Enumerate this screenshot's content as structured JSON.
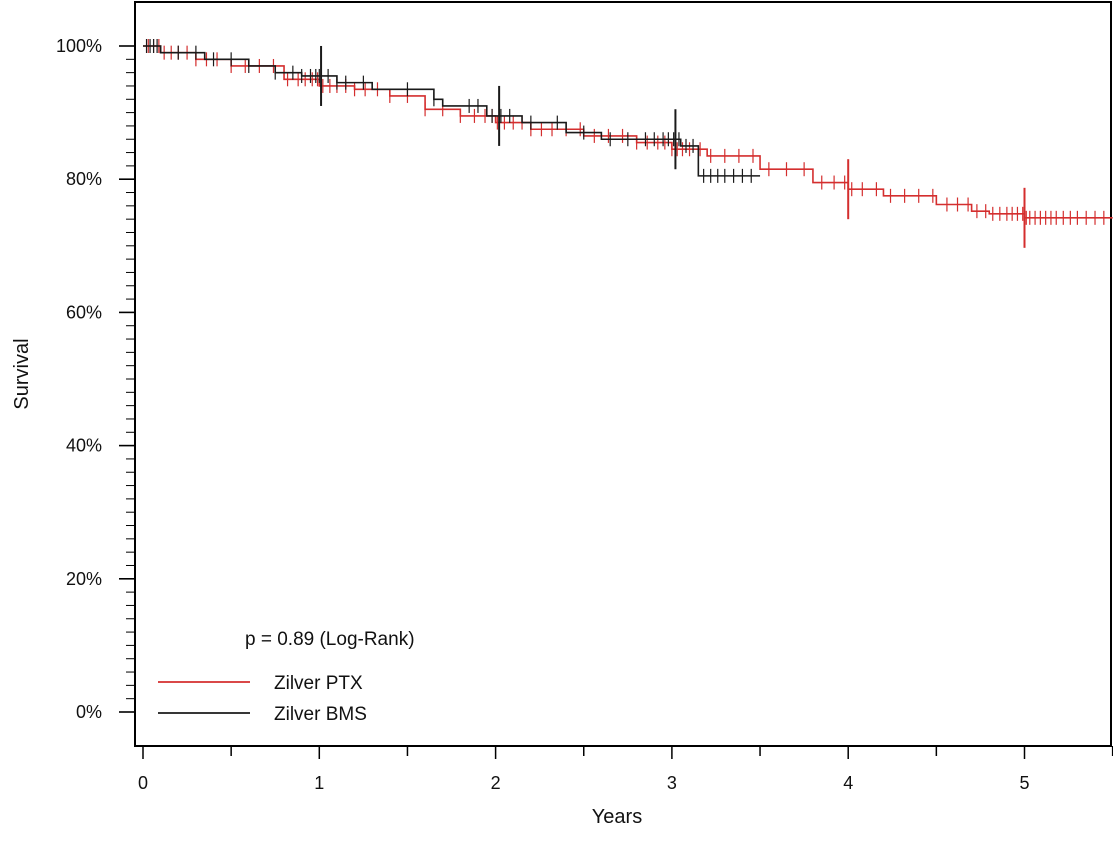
{
  "chart_data": {
    "type": "line",
    "title": "",
    "xlabel": "Years",
    "ylabel": "Survival",
    "xlim": [
      -0.04,
      5.5
    ],
    "ylim": [
      -0.05,
      1.06
    ],
    "x_ticks": [
      0,
      1,
      2,
      3,
      4,
      5
    ],
    "x_tick_labels": [
      "0",
      "1",
      "2",
      "3",
      "4",
      "5"
    ],
    "y_ticks": [
      0,
      0.2,
      0.4,
      0.6,
      0.8,
      1.0
    ],
    "y_tick_labels": [
      "0%",
      "20%",
      "40%",
      "60%",
      "80%",
      "100%"
    ],
    "grid": false,
    "legend_position": "bottom-left",
    "annotation": "p = 0.89 (Log-Rank)",
    "colors": {
      "Zilver PTX": "#d42e2e",
      "Zilver BMS": "#1a1a1a"
    },
    "series": [
      {
        "name": "Zilver PTX",
        "x": [
          0,
          0.1,
          0.3,
          0.5,
          0.8,
          1.0,
          1.2,
          1.4,
          1.6,
          1.8,
          2.0,
          2.2,
          2.5,
          2.8,
          3.0,
          3.2,
          3.5,
          3.8,
          4.0,
          4.2,
          4.5,
          4.7,
          4.8,
          5.0,
          5.5
        ],
        "y": [
          1.0,
          0.99,
          0.98,
          0.97,
          0.95,
          0.94,
          0.935,
          0.925,
          0.905,
          0.895,
          0.885,
          0.875,
          0.865,
          0.855,
          0.845,
          0.835,
          0.815,
          0.795,
          0.785,
          0.775,
          0.762,
          0.752,
          0.748,
          0.742,
          0.742
        ],
        "censor_x": [
          0.03,
          0.06,
          0.09,
          0.12,
          0.16,
          0.2,
          0.25,
          0.3,
          0.36,
          0.42,
          0.5,
          0.58,
          0.66,
          0.74,
          0.82,
          0.88,
          0.92,
          0.96,
          0.99,
          1.02,
          1.06,
          1.1,
          1.15,
          1.2,
          1.26,
          1.33,
          1.4,
          1.5,
          1.6,
          1.7,
          1.8,
          1.88,
          1.94,
          1.98,
          2.01,
          2.05,
          2.1,
          2.15,
          2.2,
          2.26,
          2.32,
          2.4,
          2.48,
          2.56,
          2.64,
          2.72,
          2.8,
          2.86,
          2.92,
          2.96,
          3.0,
          3.03,
          3.06,
          3.1,
          3.16,
          3.22,
          3.3,
          3.38,
          3.46,
          3.55,
          3.65,
          3.75,
          3.85,
          3.92,
          3.98,
          4.02,
          4.08,
          4.16,
          4.24,
          4.32,
          4.4,
          4.48,
          4.56,
          4.62,
          4.68,
          4.73,
          4.78,
          4.82,
          4.86,
          4.9,
          4.93,
          4.96,
          4.99,
          5.01,
          5.03,
          5.06,
          5.09,
          5.12,
          5.15,
          5.18,
          5.22,
          5.26,
          5.3,
          5.35,
          5.4,
          5.45
        ],
        "large_censor_x": [
          4.0,
          5.0
        ]
      },
      {
        "name": "Zilver BMS",
        "x": [
          0,
          0.1,
          0.35,
          0.6,
          0.75,
          0.9,
          1.1,
          1.3,
          1.65,
          1.7,
          1.95,
          2.15,
          2.4,
          2.6,
          3.05,
          3.15,
          3.5
        ],
        "y": [
          1.0,
          0.99,
          0.98,
          0.97,
          0.96,
          0.955,
          0.945,
          0.935,
          0.92,
          0.91,
          0.895,
          0.885,
          0.87,
          0.86,
          0.85,
          0.805,
          0.805
        ],
        "censor_x": [
          0.02,
          0.04,
          0.06,
          0.08,
          0.2,
          0.3,
          0.4,
          0.5,
          0.6,
          0.75,
          0.85,
          0.9,
          0.95,
          0.98,
          1.0,
          1.05,
          1.1,
          1.15,
          1.25,
          1.5,
          1.65,
          1.85,
          1.9,
          1.98,
          2.03,
          2.08,
          2.2,
          2.35,
          2.5,
          2.65,
          2.75,
          2.85,
          2.9,
          2.95,
          2.98,
          3.01,
          3.04,
          3.08,
          3.12,
          3.18,
          3.22,
          3.26,
          3.3,
          3.35,
          3.4,
          3.45
        ],
        "large_censor_x": [
          1.01,
          2.02,
          3.02
        ]
      }
    ]
  }
}
